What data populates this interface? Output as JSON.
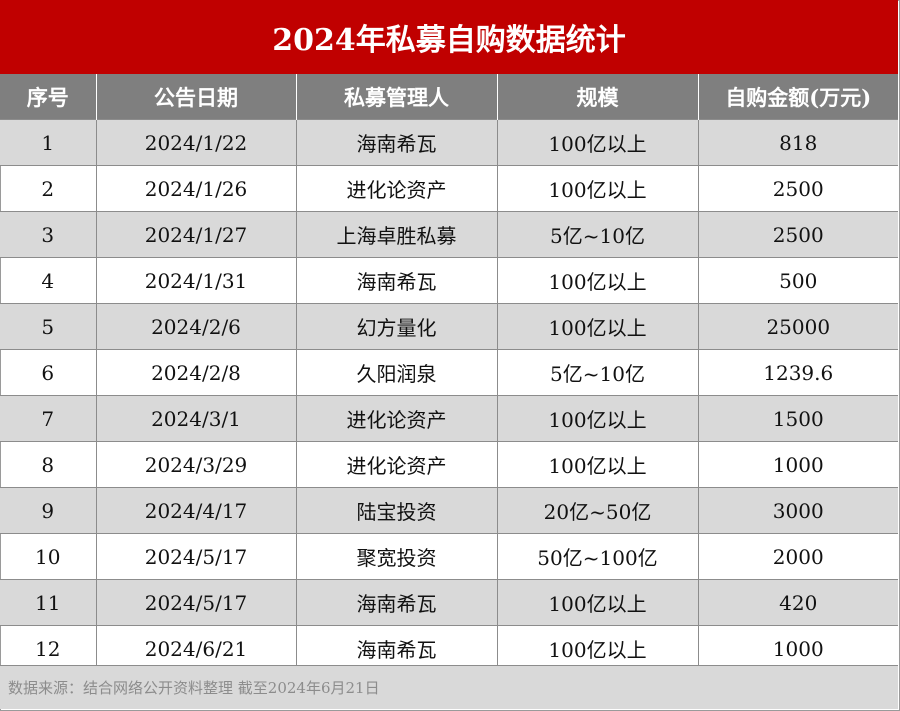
{
  "title": "2024年私募自购数据统计",
  "headers": [
    "序号",
    "公告日期",
    "私募管理人",
    "规模",
    "自购金额(万元)"
  ],
  "rows": [
    [
      "1",
      "2024/1/22",
      "海南希瓦",
      "100亿以上",
      "818"
    ],
    [
      "2",
      "2024/1/26",
      "进化论资产",
      "100亿以上",
      "2500"
    ],
    [
      "3",
      "2024/1/27",
      "上海卓胜私募",
      "5亿~10亿",
      "2500"
    ],
    [
      "4",
      "2024/1/31",
      "海南希瓦",
      "100亿以上",
      "500"
    ],
    [
      "5",
      "2024/2/6",
      "幻方量化",
      "100亿以上",
      "25000"
    ],
    [
      "6",
      "2024/2/8",
      "久阳润泉",
      "5亿~10亿",
      "1239.6"
    ],
    [
      "7",
      "2024/3/1",
      "进化论资产",
      "100亿以上",
      "1500"
    ],
    [
      "8",
      "2024/3/29",
      "进化论资产",
      "100亿以上",
      "1000"
    ],
    [
      "9",
      "2024/4/17",
      "陆宝投资",
      "20亿~50亿",
      "3000"
    ],
    [
      "10",
      "2024/5/17",
      "聚宽投资",
      "50亿~100亿",
      "2000"
    ],
    [
      "11",
      "2024/5/17",
      "海南希瓦",
      "100亿以上",
      "420"
    ],
    [
      "12",
      "2024/6/21",
      "海南希瓦",
      "100亿以上",
      "1000"
    ]
  ],
  "footer": "数据来源：结合网络公开资料整理  截至2024年6月21日",
  "colors": {
    "title_bg": "#c00000",
    "header_bg": "#7f7f7f",
    "shade_row": "#d9d9d9"
  }
}
